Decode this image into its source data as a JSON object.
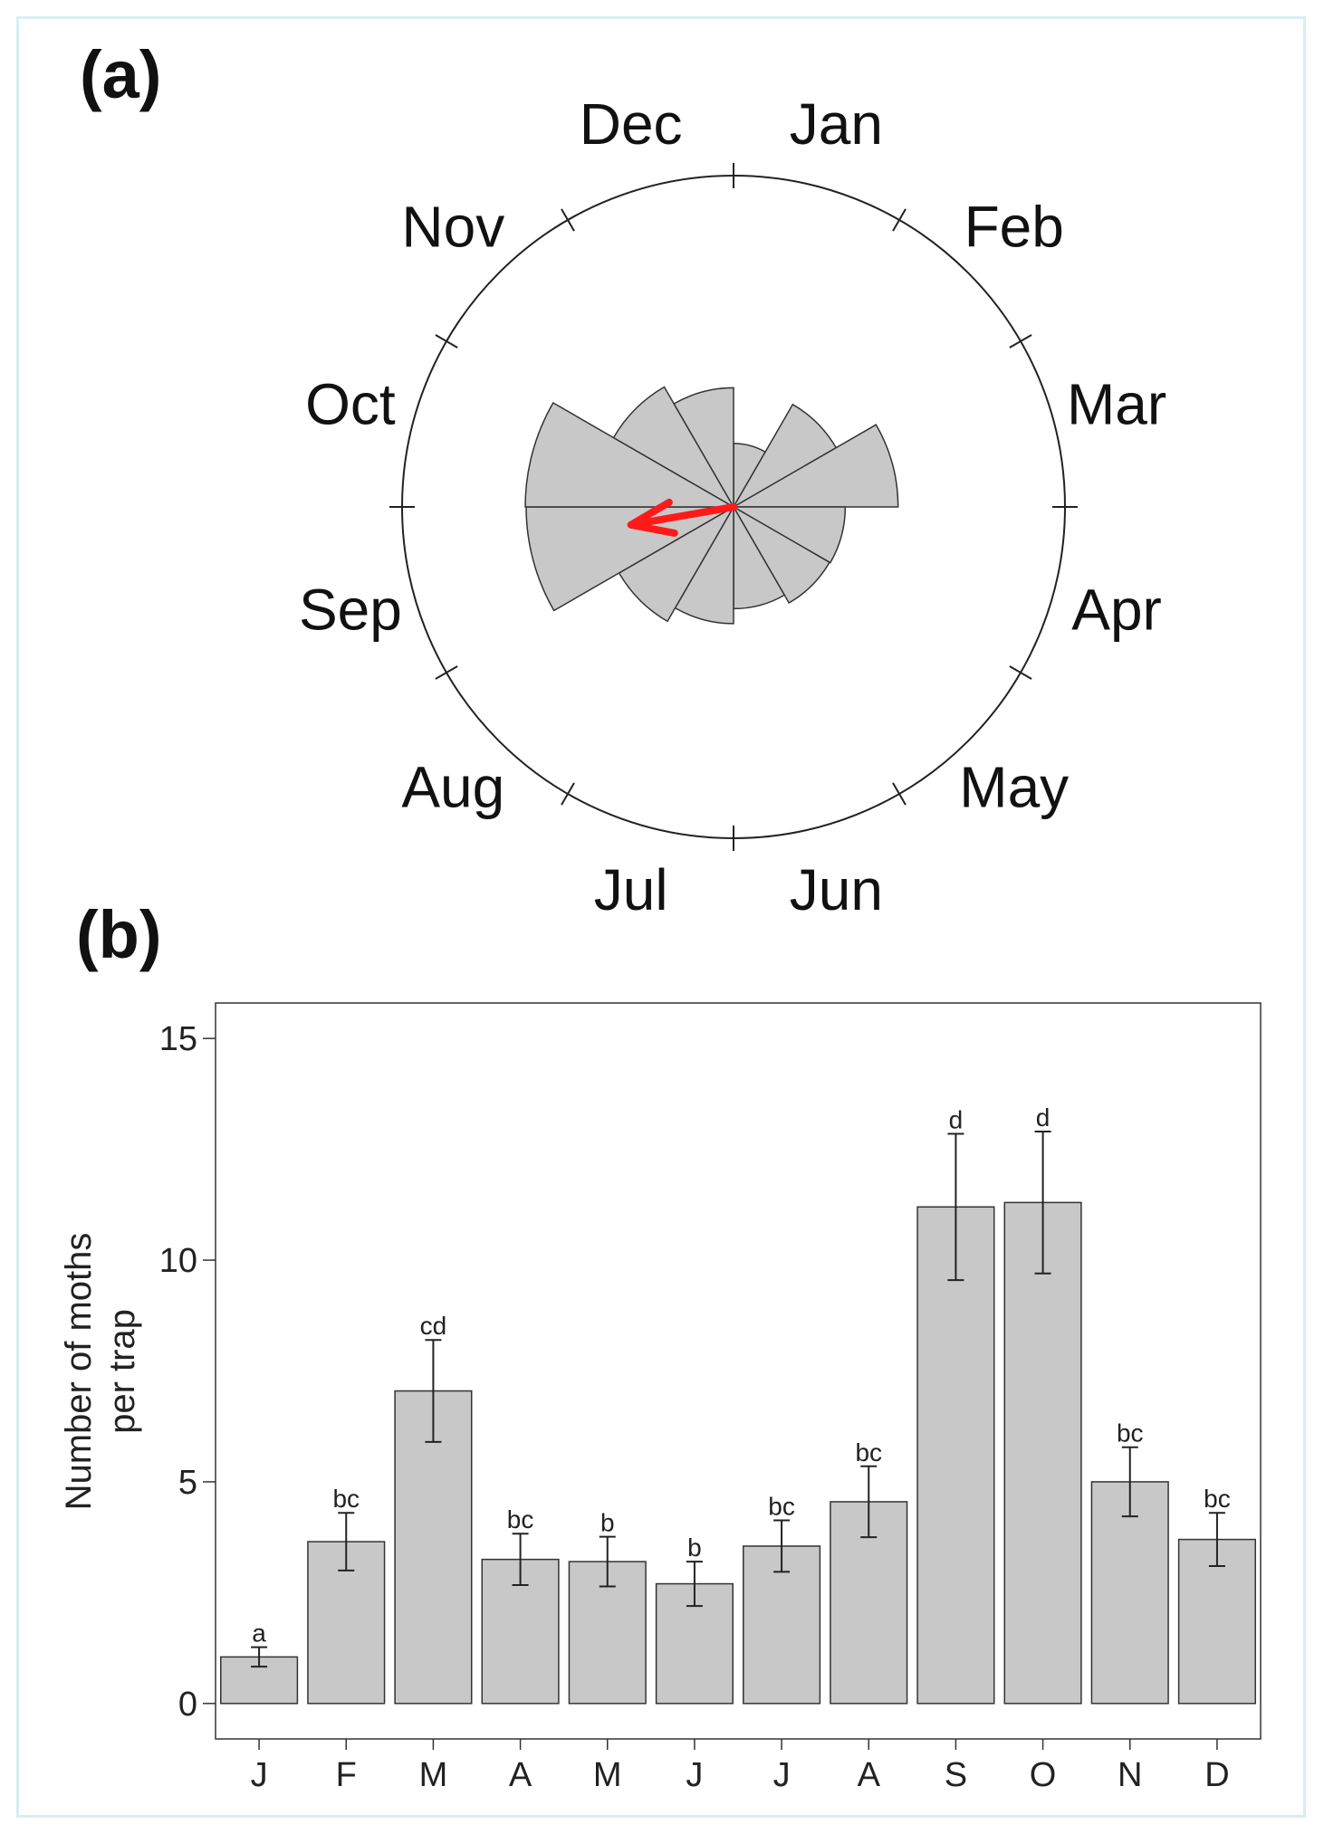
{
  "panel_a": {
    "label": "(a)",
    "months": [
      "Jan",
      "Feb",
      "Mar",
      "Apr",
      "May",
      "Jun",
      "Jul",
      "Aug",
      "Sep",
      "Oct",
      "Nov",
      "Dec"
    ]
  },
  "panel_b": {
    "label": "(b)"
  },
  "colors": {
    "bar_fill": "#c8c8c8",
    "bar_stroke": "#333333",
    "mean_vector": "#ff1a1a",
    "frame": "#d6eef6"
  },
  "chart_data": [
    {
      "type": "rose",
      "title": "(a)",
      "direction": "clockwise",
      "start": "Jan at top-right of vertical",
      "categories": [
        "Jan",
        "Feb",
        "Mar",
        "Apr",
        "May",
        "Jun",
        "Jul",
        "Aug",
        "Sep",
        "Oct",
        "Nov",
        "Dec"
      ],
      "values": [
        1.05,
        3.65,
        7.05,
        3.25,
        3.2,
        2.7,
        3.55,
        4.55,
        11.2,
        11.3,
        5.0,
        3.7
      ],
      "mean_vector": {
        "month_position": 8.67,
        "relative_length": 0.5
      }
    },
    {
      "type": "bar",
      "title": "(b)",
      "categories": [
        "J",
        "F",
        "M",
        "A",
        "M",
        "J",
        "J",
        "A",
        "S",
        "O",
        "N",
        "D"
      ],
      "values": [
        1.05,
        3.65,
        7.05,
        3.25,
        3.2,
        2.7,
        3.55,
        4.55,
        11.2,
        11.3,
        5.0,
        3.7
      ],
      "error": [
        0.22,
        0.65,
        1.15,
        0.58,
        0.56,
        0.5,
        0.58,
        0.8,
        1.65,
        1.6,
        0.78,
        0.6
      ],
      "significance": [
        "a",
        "bc",
        "cd",
        "bc",
        "b",
        "b",
        "bc",
        "bc",
        "d",
        "d",
        "bc",
        "bc"
      ],
      "ylabel": [
        "Number of moths",
        "per trap"
      ],
      "xlabel": "",
      "ylim": [
        -0.8,
        15.8
      ],
      "yticks": [
        0,
        5,
        10,
        15
      ]
    }
  ]
}
